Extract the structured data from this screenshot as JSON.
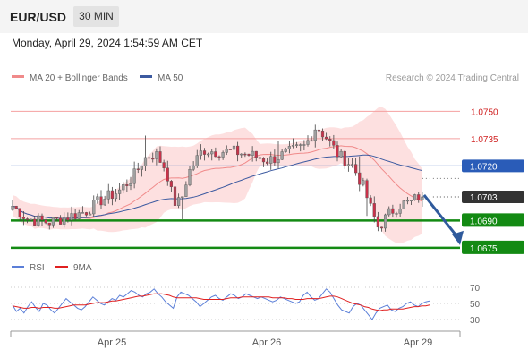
{
  "header": {
    "symbol": "EUR/USD",
    "timeframe": "30 MIN",
    "datetime": "Monday, April 29, 2024 1:54:59 AM CET"
  },
  "colors": {
    "ma20": "#f08a8a",
    "ma50": "#3c5aa0",
    "bollinger_fill": "#fde0e0",
    "candle_up": "#a0a0a0",
    "candle_down": "#c8324a",
    "support": "#138a13",
    "resistance_line": "#f4a0a0",
    "pivot_line": "#2a5cb8",
    "price_badge": "#333333",
    "arrow": "#2f5a9c",
    "rsi": "#5b7fd8",
    "rsi_ma": "#e02020"
  },
  "chart_data": [
    {
      "type": "candlestick",
      "title": "",
      "legend": [
        {
          "name": "MA 20 + Bollinger Bands",
          "color": "#f08a8a"
        },
        {
          "name": "MA 50",
          "color": "#3c5aa0"
        }
      ],
      "watermark": "Research © 2024 Trading Central",
      "y_range": [
        1.0671,
        1.0762
      ],
      "x_ticks": [
        "Apr 25",
        "Apr 26",
        "Apr 29"
      ],
      "levels": [
        {
          "label": "1.0750",
          "value": 1.075,
          "kind": "resistance"
        },
        {
          "label": "1.0735",
          "value": 1.0735,
          "kind": "resistance"
        },
        {
          "label": "1.0720",
          "value": 1.072,
          "kind": "pivot"
        },
        {
          "label": "1.0690",
          "value": 1.069,
          "kind": "support"
        },
        {
          "label": "1.0675",
          "value": 1.0675,
          "kind": "support"
        }
      ],
      "last_price": {
        "label": "1.0703",
        "value": 1.0703
      },
      "forecast": {
        "direction": "down",
        "target": 1.0675
      }
    },
    {
      "type": "line",
      "title": "",
      "legend": [
        {
          "name": "RSI",
          "color": "#5b7fd8"
        },
        {
          "name": "9MA",
          "color": "#e02020"
        }
      ],
      "y_ticks": [
        "70",
        "50",
        "30"
      ],
      "y_tick_values": [
        70,
        50,
        30
      ],
      "y_range": [
        20,
        80
      ],
      "rsi": [
        48,
        40,
        44,
        38,
        46,
        52,
        45,
        40,
        50,
        48,
        42,
        38,
        44,
        50,
        56,
        52,
        48,
        44,
        42,
        46,
        52,
        58,
        54,
        50,
        48,
        52,
        56,
        54,
        60,
        58,
        62,
        66,
        64,
        60,
        58,
        62,
        64,
        68,
        62,
        58,
        52,
        48,
        44,
        58,
        64,
        62,
        60,
        56,
        52,
        46,
        50,
        54,
        58,
        60,
        56,
        54,
        58,
        62,
        60,
        56,
        58,
        62,
        60,
        58,
        56,
        58,
        56,
        54,
        52,
        54,
        58,
        56,
        54,
        52,
        50,
        52,
        60,
        64,
        58,
        54,
        56,
        62,
        68,
        64,
        56,
        48,
        42,
        40,
        38,
        46,
        50,
        48,
        42,
        36,
        30,
        38,
        44,
        46,
        48,
        42,
        40,
        44,
        46,
        50,
        52,
        48,
        46,
        50,
        52,
        53
      ],
      "rsi_ma": [
        47,
        46,
        45,
        44,
        44,
        45,
        45,
        44,
        45,
        45,
        45,
        44,
        44,
        45,
        46,
        47,
        48,
        48,
        48,
        48,
        49,
        50,
        51,
        51,
        51,
        52,
        53,
        53,
        54,
        55,
        56,
        57,
        58,
        59,
        59,
        60,
        61,
        62,
        62,
        62,
        61,
        60,
        58,
        57,
        57,
        57,
        57,
        57,
        57,
        56,
        55,
        55,
        55,
        55,
        55,
        55,
        56,
        57,
        57,
        57,
        58,
        58,
        58,
        58,
        58,
        58,
        58,
        58,
        57,
        57,
        57,
        57,
        56,
        56,
        55,
        55,
        55,
        56,
        56,
        56,
        56,
        57,
        58,
        59,
        59,
        58,
        56,
        54,
        52,
        50,
        49,
        48,
        46,
        45,
        43,
        42,
        41,
        42,
        42,
        43,
        43,
        43,
        43,
        44,
        45,
        46,
        46,
        47,
        47,
        48
      ]
    }
  ]
}
